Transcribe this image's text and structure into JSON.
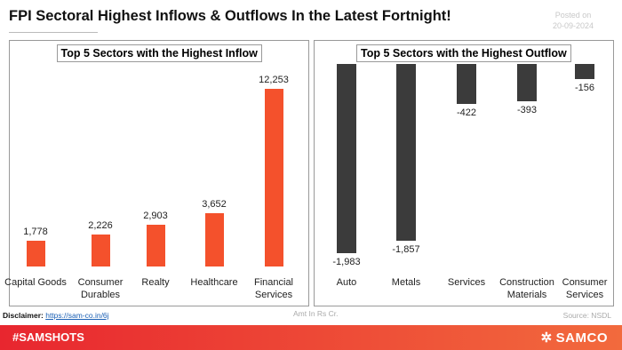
{
  "title": "FPI Sectoral Highest Inflows & Outflows In the Latest Fortnight!",
  "posted_label": "Posted on",
  "posted_date": "20-09-2024",
  "chart_data": [
    {
      "type": "bar",
      "title": "Top 5 Sectors with the Highest Inflow",
      "categories": [
        "Capital Goods",
        "Consumer Durables",
        "Realty",
        "Healthcare",
        "Financial Services"
      ],
      "values": [
        1778,
        2226,
        2903,
        3652,
        12253
      ],
      "value_labels": [
        "1,778",
        "2,226",
        "2,903",
        "3,652",
        "12,253"
      ],
      "color": "#f4512c"
    },
    {
      "type": "bar",
      "title": "Top 5 Sectors with the Highest Outflow",
      "categories": [
        "Auto",
        "Metals",
        "Services",
        "Construction Materials",
        "Consumer Services"
      ],
      "values": [
        -1983,
        -1857,
        -422,
        -393,
        -156
      ],
      "value_labels": [
        "-1,983",
        "-1,857",
        "-422",
        "-393",
        "-156"
      ],
      "color": "#3b3b3b"
    }
  ],
  "disclaimer_label": "Disclaimer:",
  "disclaimer_link": "https://sam-co.in/6j",
  "unit_note": "Amt In Rs Cr.",
  "source": "Source: NSDL",
  "hashtag": "#SAMSHOTS",
  "brand": "SAMCO"
}
